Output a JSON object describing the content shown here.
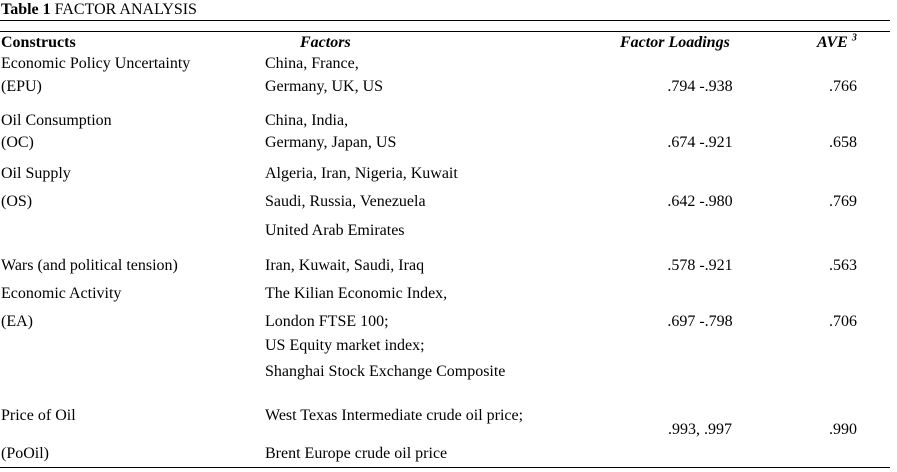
{
  "table": {
    "label": "Table 1",
    "caption": "FACTOR ANALYSIS",
    "headers": {
      "constructs": "Constructs",
      "factors": "Factors",
      "loadings": "Factor Loadings",
      "ave": "AVE",
      "ave_sup": "3"
    },
    "rows": [
      {
        "construct": [
          "Economic Policy Uncertainty",
          "(EPU)"
        ],
        "factors": [
          "China, France,",
          "Germany, UK, US"
        ],
        "loadings": ".794 -.938",
        "ave": ".766"
      },
      {
        "construct": [
          "Oil Consumption",
          "(OC)"
        ],
        "factors": [
          "China, India,",
          "Germany, Japan, US"
        ],
        "loadings": ".674 -.921",
        "ave": ".658"
      },
      {
        "construct": [
          "Oil Supply",
          "(OS)"
        ],
        "factors": [
          "Algeria, Iran, Nigeria, Kuwait",
          "Saudi, Russia, Venezuela",
          "United Arab Emirates"
        ],
        "loadings": ".642 -.980",
        "ave": ".769"
      },
      {
        "construct": [
          "Wars (and political tension)"
        ],
        "factors": [
          "Iran, Kuwait, Saudi, Iraq"
        ],
        "loadings": ".578 -.921",
        "ave": ".563"
      },
      {
        "construct": [
          "Economic Activity",
          "(EA)"
        ],
        "factors": [
          "The Kilian Economic Index,",
          "London FTSE 100;",
          "US Equity market index;",
          "Shanghai Stock Exchange Composite"
        ],
        "loadings": ".697 -.798",
        "ave": ".706"
      },
      {
        "construct": [
          "Price of Oil",
          "(PoOil)"
        ],
        "factors": [
          "West Texas Intermediate crude oil price;",
          "Brent Europe crude oil price"
        ],
        "loadings": ".993,  .997",
        "ave": ".990"
      }
    ]
  }
}
